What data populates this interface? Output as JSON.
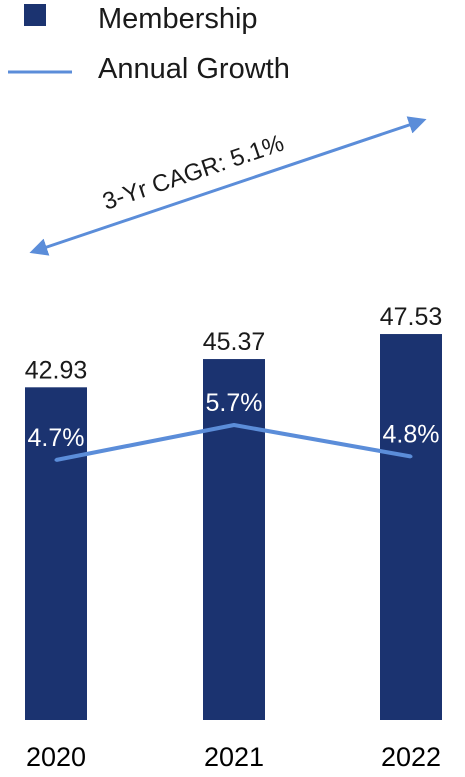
{
  "colors": {
    "bar": "#1b3370",
    "line": "#5b8dd9",
    "arrow": "#5b8dd9"
  },
  "legend": {
    "items": [
      {
        "label": "Membership",
        "shape": "square"
      },
      {
        "label": "Annual Growth",
        "shape": "line"
      }
    ]
  },
  "annotation": {
    "text": "3-Yr CAGR: 5.1%",
    "shape": "double-arrow"
  },
  "chart_data": {
    "type": "bar",
    "categories": [
      "2020",
      "2021",
      "2022"
    ],
    "series": [
      {
        "name": "Membership",
        "type": "bar",
        "values": [
          42.93,
          45.37,
          47.53
        ],
        "labels": [
          "42.93",
          "45.37",
          "47.53"
        ]
      },
      {
        "name": "Annual Growth",
        "type": "line",
        "values": [
          4.7,
          5.7,
          4.8
        ],
        "labels": [
          "4.7%",
          "5.7%",
          "4.8%"
        ]
      }
    ],
    "legend_position": "top-left",
    "grid": false
  }
}
